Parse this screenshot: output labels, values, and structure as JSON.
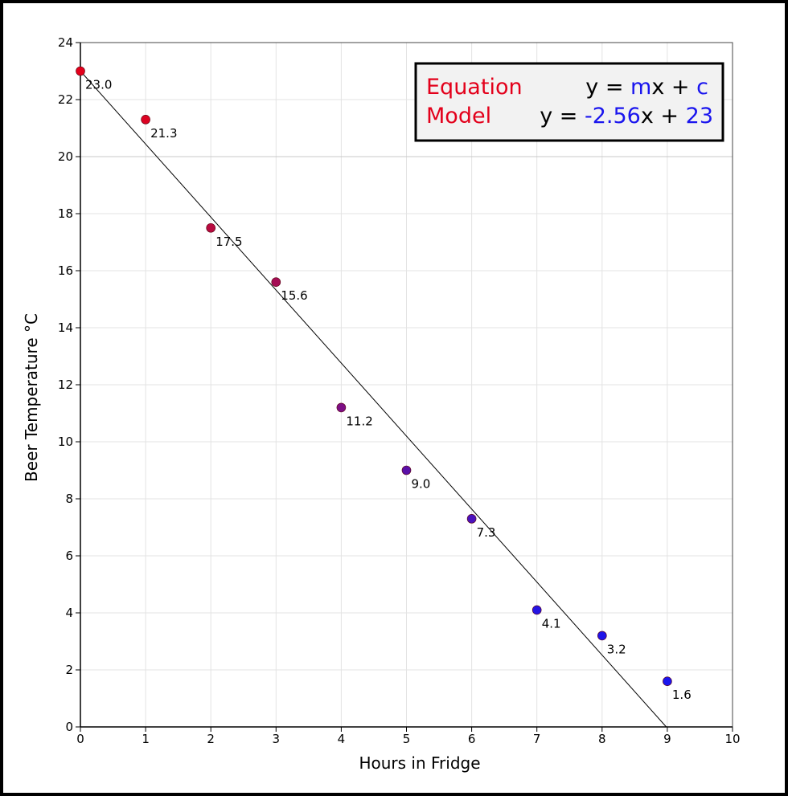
{
  "chart_data": {
    "type": "scatter",
    "xlabel": "Hours in Fridge",
    "ylabel": "Beer Temperature °C",
    "xlim": [
      0,
      10
    ],
    "ylim": [
      0,
      24
    ],
    "x_ticks": [
      "0",
      "1",
      "2",
      "3",
      "4",
      "5",
      "6",
      "7",
      "8",
      "9",
      "10"
    ],
    "y_ticks": [
      "0",
      "2",
      "4",
      "6",
      "8",
      "10",
      "12",
      "14",
      "16",
      "18",
      "20",
      "22",
      "24"
    ],
    "grid": true,
    "points": [
      {
        "x": 0,
        "y": 23.0,
        "label": "23.0",
        "color": "#e3001b"
      },
      {
        "x": 1,
        "y": 21.3,
        "label": "21.3",
        "color": "#dc0322"
      },
      {
        "x": 2,
        "y": 17.5,
        "label": "17.5",
        "color": "#b80a40"
      },
      {
        "x": 3,
        "y": 15.6,
        "label": "15.6",
        "color": "#a50d55"
      },
      {
        "x": 4,
        "y": 11.2,
        "label": "11.2",
        "color": "#7d0f85"
      },
      {
        "x": 5,
        "y": 9.0,
        "label": "9.0",
        "color": "#5a10a8"
      },
      {
        "x": 6,
        "y": 7.3,
        "label": "7.3",
        "color": "#4a12bd"
      },
      {
        "x": 7,
        "y": 4.1,
        "label": "4.1",
        "color": "#2414e3"
      },
      {
        "x": 8,
        "y": 3.2,
        "label": "3.2",
        "color": "#1f14e8"
      },
      {
        "x": 9,
        "y": 1.6,
        "label": "1.6",
        "color": "#1a15ee"
      }
    ],
    "trendline": {
      "slope": -2.56,
      "intercept": 23,
      "color": "#000000"
    },
    "legend": {
      "placement": "top-right",
      "row1_label": "Equation",
      "row1_eq_prefix": "y = ",
      "row1_m": "m",
      "row1_mid": "x + ",
      "row1_c": "c",
      "row2_label": "Model",
      "row2_eq_prefix": "y = ",
      "row2_m": "-2.56",
      "row2_mid": "x + ",
      "row2_c": "23",
      "label_color": "#e3001b",
      "param_color": "#1a15ee"
    }
  }
}
